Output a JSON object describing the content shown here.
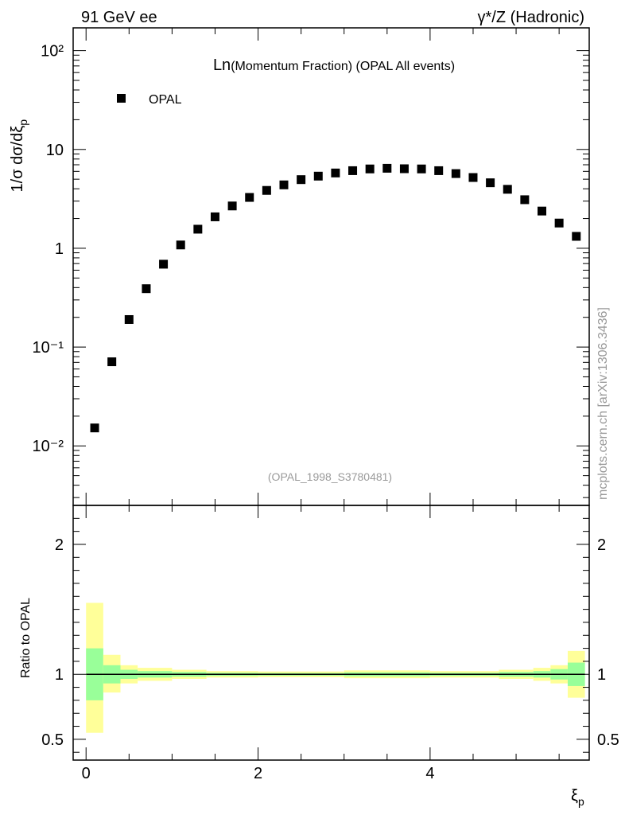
{
  "header": {
    "left": "91 GeV ee",
    "right": "γ*/Z (Hadronic)"
  },
  "side_label": "mcplots.cern.ch [arXiv:1306.3436]",
  "chart_data": [
    {
      "type": "scatter",
      "title": "Ln(Momentum Fraction) (OPAL All events)",
      "ylabel": "1/σ dσ/dξp",
      "xlabel": "ξp",
      "yscale": "log",
      "ylim": [
        0.0025,
        170
      ],
      "xlim": [
        -0.15,
        5.85
      ],
      "yticks": [
        {
          "value": 0.01,
          "label": "10⁻²"
        },
        {
          "value": 0.1,
          "label": "10⁻¹"
        },
        {
          "value": 1,
          "label": "1"
        },
        {
          "value": 10,
          "label": "10"
        },
        {
          "value": 100,
          "label": "10²"
        }
      ],
      "legend": {
        "position": "top-left",
        "entries": [
          "OPAL"
        ]
      },
      "watermark": "(OPAL_1998_S3780481)",
      "series": [
        {
          "name": "OPAL",
          "marker": "square",
          "color": "#000000",
          "x": [
            0.1,
            0.3,
            0.5,
            0.7,
            0.9,
            1.1,
            1.3,
            1.5,
            1.7,
            1.9,
            2.1,
            2.3,
            2.5,
            2.7,
            2.9,
            3.1,
            3.3,
            3.5,
            3.7,
            3.9,
            4.1,
            4.3,
            4.5,
            4.7,
            4.9,
            5.1,
            5.3,
            5.5,
            5.7
          ],
          "y": [
            0.0152,
            0.071,
            0.19,
            0.39,
            0.69,
            1.08,
            1.56,
            2.08,
            2.68,
            3.27,
            3.85,
            4.38,
            4.95,
            5.37,
            5.78,
            6.1,
            6.35,
            6.45,
            6.38,
            6.35,
            6.1,
            5.7,
            5.2,
            4.6,
            3.95,
            3.1,
            2.38,
            1.8,
            1.32
          ]
        }
      ]
    },
    {
      "type": "area",
      "ylabel": "Ratio to OPAL",
      "xlabel": "ξp",
      "ylim": [
        0.34,
        2.3
      ],
      "xlim": [
        -0.15,
        5.85
      ],
      "xticks": [
        0,
        2,
        4
      ],
      "yticks": [
        0.5,
        1,
        2
      ],
      "reference_line": 1,
      "colors": {
        "outer_band": "#ffff99",
        "inner_band": "#99ff99",
        "line": "#000000"
      },
      "bins": [
        {
          "x0": 0.0,
          "x1": 0.2,
          "outer": [
            0.55,
            1.55
          ],
          "inner": [
            0.8,
            1.2
          ]
        },
        {
          "x0": 0.2,
          "x1": 0.4,
          "outer": [
            0.86,
            1.15
          ],
          "inner": [
            0.93,
            1.07
          ]
        },
        {
          "x0": 0.4,
          "x1": 0.6,
          "outer": [
            0.93,
            1.07
          ],
          "inner": [
            0.965,
            1.035
          ]
        },
        {
          "x0": 0.6,
          "x1": 1.0,
          "outer": [
            0.95,
            1.05
          ],
          "inner": [
            0.975,
            1.025
          ]
        },
        {
          "x0": 1.0,
          "x1": 1.4,
          "outer": [
            0.965,
            1.035
          ],
          "inner": [
            0.982,
            1.018
          ]
        },
        {
          "x0": 1.4,
          "x1": 2.0,
          "outer": [
            0.975,
            1.025
          ],
          "inner": [
            0.988,
            1.012
          ]
        },
        {
          "x0": 2.0,
          "x1": 3.0,
          "outer": [
            0.978,
            1.022
          ],
          "inner": [
            0.99,
            1.01
          ]
        },
        {
          "x0": 3.0,
          "x1": 4.0,
          "outer": [
            0.97,
            1.03
          ],
          "inner": [
            0.985,
            1.015
          ]
        },
        {
          "x0": 4.0,
          "x1": 4.8,
          "outer": [
            0.975,
            1.025
          ],
          "inner": [
            0.988,
            1.012
          ]
        },
        {
          "x0": 4.8,
          "x1": 5.2,
          "outer": [
            0.965,
            1.035
          ],
          "inner": [
            0.982,
            1.018
          ]
        },
        {
          "x0": 5.2,
          "x1": 5.4,
          "outer": [
            0.95,
            1.05
          ],
          "inner": [
            0.975,
            1.025
          ]
        },
        {
          "x0": 5.4,
          "x1": 5.6,
          "outer": [
            0.93,
            1.07
          ],
          "inner": [
            0.96,
            1.04
          ]
        },
        {
          "x0": 5.6,
          "x1": 5.8,
          "outer": [
            0.82,
            1.18
          ],
          "inner": [
            0.91,
            1.09
          ]
        }
      ]
    }
  ]
}
